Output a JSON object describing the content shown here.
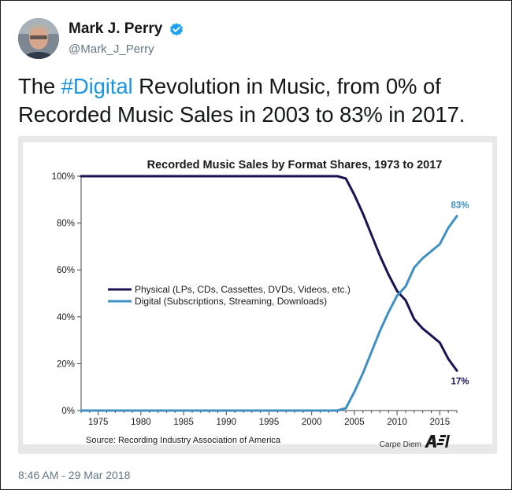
{
  "tweet": {
    "display_name": "Mark J. Perry",
    "handle": "@Mark_J_Perry",
    "verified": true,
    "text_before": "The ",
    "hashtag": "#Digital",
    "text_after": " Revolution in Music, from 0% of Recorded Music Sales in 2003 to 83% in 2017.",
    "timestamp": "8:46 AM - 29 Mar 2018",
    "colors": {
      "hashtag": "#1b95e0",
      "verified_badge": "#1da1f2",
      "secondary_text": "#657786"
    }
  },
  "chart_data": {
    "type": "line",
    "title": "Recorded Music Sales by Format Shares, 1973 to 2017",
    "xlabel": "",
    "ylabel": "",
    "xlim": [
      1973,
      2017
    ],
    "ylim": [
      0,
      100
    ],
    "x_ticks": [
      1975,
      1980,
      1985,
      1990,
      1995,
      2000,
      2005,
      2010,
      2015
    ],
    "y_ticks": [
      "0%",
      "20%",
      "40%",
      "60%",
      "80%",
      "100%"
    ],
    "grid": false,
    "legend_position": "center-left",
    "source": "Source: Recording Industry Association of America",
    "branding": "Carpe Diem",
    "series": [
      {
        "name": "Physical (LPs, CDs, Cassettes, DVDs, Videos, etc.)",
        "color": "#1a1254",
        "points": [
          [
            1973,
            100
          ],
          [
            1980,
            100
          ],
          [
            1990,
            100
          ],
          [
            2000,
            100
          ],
          [
            2003,
            100
          ],
          [
            2004,
            99
          ],
          [
            2005,
            92
          ],
          [
            2006,
            84
          ],
          [
            2007,
            75
          ],
          [
            2008,
            66
          ],
          [
            2009,
            58
          ],
          [
            2010,
            51
          ],
          [
            2011,
            47
          ],
          [
            2012,
            39
          ],
          [
            2013,
            35
          ],
          [
            2014,
            32
          ],
          [
            2015,
            29
          ],
          [
            2016,
            22
          ],
          [
            2017,
            17
          ]
        ],
        "end_label": "17%"
      },
      {
        "name": "Digital (Subscriptions, Streaming, Downloads)",
        "color": "#3e90c4",
        "points": [
          [
            1973,
            0
          ],
          [
            1980,
            0
          ],
          [
            1990,
            0
          ],
          [
            2000,
            0
          ],
          [
            2003,
            0
          ],
          [
            2004,
            1
          ],
          [
            2005,
            8
          ],
          [
            2006,
            16
          ],
          [
            2007,
            25
          ],
          [
            2008,
            34
          ],
          [
            2009,
            42
          ],
          [
            2010,
            49
          ],
          [
            2011,
            53
          ],
          [
            2012,
            61
          ],
          [
            2013,
            65
          ],
          [
            2014,
            68
          ],
          [
            2015,
            71
          ],
          [
            2016,
            78
          ],
          [
            2017,
            83
          ]
        ],
        "end_label": "83%"
      }
    ]
  }
}
